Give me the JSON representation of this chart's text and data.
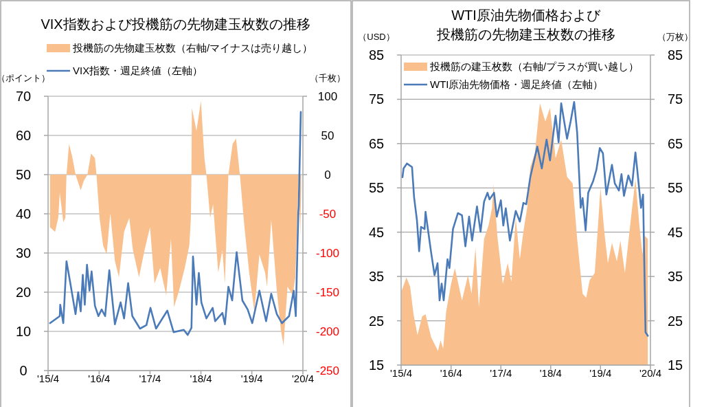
{
  "chart_data": [
    {
      "type": "line",
      "title": "VIX指数および投機筋の先物建玉枚数の推移",
      "ylabel": "（ポイント）",
      "y2label": "（千枚）",
      "legend": "top",
      "grid": "y",
      "xlim": [
        "2015-04-01",
        "2020-04-01"
      ],
      "xticks": [
        {
          "value": "2015-04-01",
          "label": "'15/4"
        },
        {
          "value": "2016-04-01",
          "label": "'16/4"
        },
        {
          "value": "2017-04-01",
          "label": "'17/4"
        },
        {
          "value": "2018-04-01",
          "label": "'18/4"
        },
        {
          "value": "2019-04-01",
          "label": "'19/4"
        },
        {
          "value": "2020-04-01",
          "label": "'20/4"
        }
      ],
      "ylim": [
        0,
        70
      ],
      "yticks": [
        0,
        10,
        20,
        30,
        40,
        50,
        60,
        70
      ],
      "y2lim": [
        -250,
        100
      ],
      "y2ticks": [
        -250,
        -200,
        -150,
        -100,
        -50,
        0,
        50,
        100
      ],
      "series": [
        {
          "name": "投機筋の先物建玉枚数（右軸/マイナスは売り越し）",
          "type": "area",
          "axis": "y2",
          "color": "#f9c08e",
          "x": [
            "2015-04-15",
            "2015-05-21",
            "2015-06-13",
            "2015-06-24",
            "2015-07-19",
            "2015-08-03",
            "2015-08-11",
            "2015-08-29",
            "2015-09-20",
            "2015-10-15",
            "2015-11-21",
            "2015-12-13",
            "2016-01-08",
            "2016-02-03",
            "2016-03-02",
            "2016-03-13",
            "2016-04-04",
            "2016-04-29",
            "2016-05-25",
            "2016-06-20",
            "2016-07-23",
            "2016-08-21",
            "2016-09-27",
            "2016-11-03",
            "2016-11-29",
            "2017-01-12",
            "2017-02-21",
            "2017-04-01",
            "2017-05-03",
            "2017-06-13",
            "2017-07-26",
            "2017-08-29",
            "2017-09-20",
            "2017-10-26",
            "2017-12-06",
            "2018-01-08",
            "2018-01-19",
            "2018-01-23",
            "2018-01-26",
            "2018-02-28",
            "2018-04-01",
            "2018-04-26",
            "2018-05-10",
            "2018-06-06",
            "2018-06-27",
            "2018-08-03",
            "2018-09-02",
            "2018-09-20",
            "2018-10-15",
            "2018-11-14",
            "2018-12-09",
            "2019-01-05",
            "2019-02-07",
            "2019-03-13",
            "2019-04-19",
            "2019-05-25",
            "2019-07-05",
            "2019-07-19",
            "2019-08-18",
            "2019-09-27",
            "2019-10-26",
            "2019-11-14",
            "2019-12-13",
            "2020-01-19",
            "2020-02-07",
            "2020-03-02",
            "2020-03-13",
            "2020-03-20"
          ],
          "values": [
            -67,
            -73,
            -55,
            -23,
            -61,
            -55,
            0,
            39,
            24,
            0,
            -20,
            -8,
            0,
            27,
            21,
            0,
            -55,
            -90,
            -102,
            -49,
            -110,
            -131,
            -73,
            -55,
            -96,
            -131,
            -96,
            -67,
            -139,
            -119,
            -154,
            -82,
            -169,
            -148,
            -119,
            -90,
            -55,
            0,
            85,
            56,
            94,
            21,
            0,
            -55,
            -38,
            -125,
            -96,
            -139,
            0,
            39,
            46,
            0,
            -67,
            -125,
            -175,
            -102,
            -125,
            -143,
            -58,
            -148,
            -198,
            -218,
            -143,
            -154,
            -131,
            0,
            -78,
            -17
          ]
        },
        {
          "name": "VIX指数・週足終値（左軸）",
          "type": "line",
          "axis": "y",
          "color": "#4a7ab8",
          "x": [
            "2015-04-15",
            "2015-06-24",
            "2015-06-27",
            "2015-07-19",
            "2015-08-11",
            "2015-09-06",
            "2015-10-15",
            "2015-11-03",
            "2015-11-21",
            "2015-12-06",
            "2015-12-20",
            "2016-01-05",
            "2016-01-23",
            "2016-02-07",
            "2016-03-02",
            "2016-03-27",
            "2016-04-19",
            "2016-05-14",
            "2016-06-13",
            "2016-07-23",
            "2016-09-02",
            "2016-09-27",
            "2016-10-26",
            "2016-11-25",
            "2017-01-19",
            "2017-03-06",
            "2017-04-04",
            "2017-05-14",
            "2017-08-03",
            "2017-09-17",
            "2017-11-29",
            "2017-12-27",
            "2018-01-23",
            "2018-02-03",
            "2018-02-28",
            "2018-03-17",
            "2018-04-04",
            "2018-05-10",
            "2018-06-24",
            "2018-07-12",
            "2018-09-02",
            "2018-09-20",
            "2018-10-15",
            "2018-11-11",
            "2018-12-13",
            "2019-01-23",
            "2019-03-02",
            "2019-04-04",
            "2019-05-25",
            "2019-07-12",
            "2019-08-18",
            "2019-09-27",
            "2019-11-03",
            "2019-12-24",
            "2020-01-26",
            "2020-02-10",
            "2020-02-28",
            "2020-03-02",
            "2020-03-17"
          ],
          "values": [
            12.1,
            13.9,
            16.8,
            12.1,
            27.9,
            22.6,
            14.4,
            20,
            15.1,
            24.4,
            16.8,
            27,
            20.4,
            25.3,
            16.5,
            13.9,
            15.6,
            13.9,
            25.6,
            11.8,
            17.4,
            13.3,
            22.3,
            13.9,
            10.7,
            11.6,
            16,
            10.7,
            15.3,
            9.8,
            10.4,
            9.1,
            10.9,
            29.1,
            16.8,
            24.9,
            17.4,
            13.3,
            16,
            12.6,
            14.7,
            11.8,
            21.4,
            17.9,
            30.2,
            17.9,
            15.6,
            12.1,
            20.4,
            12.6,
            19.6,
            14.4,
            12.1,
            13.9,
            20.4,
            13.9,
            40.2,
            41.9,
            66
          ]
        }
      ]
    },
    {
      "type": "line",
      "title": "WTI原油先物価格および投機筋の先物建玉枚数の推移",
      "ylabel": "（USD）",
      "y2label": "（万枚）",
      "legend": "top left",
      "grid": "y",
      "xlim": [
        "2015-04-01",
        "2020-04-01"
      ],
      "xticks": [
        {
          "value": "2015-04-01",
          "label": "'15/4"
        },
        {
          "value": "2016-04-01",
          "label": "'16/4"
        },
        {
          "value": "2017-04-01",
          "label": "'17/4"
        },
        {
          "value": "2018-04-01",
          "label": "'18/4"
        },
        {
          "value": "2019-04-01",
          "label": "'19/4"
        },
        {
          "value": "2020-04-01",
          "label": "'20/4"
        }
      ],
      "ylim": [
        15,
        85
      ],
      "yticks": [
        15,
        25,
        35,
        45,
        55,
        65,
        75,
        85
      ],
      "y2lim": [
        15,
        85
      ],
      "y2ticks": [
        15,
        25,
        35,
        45,
        55,
        65,
        75,
        85
      ],
      "series": [
        {
          "name": "投機筋の建玉枚数（右軸/プラスが買い越し）",
          "type": "area",
          "axis": "y2",
          "color": "#f9c08e",
          "x": [
            "2015-04-04",
            "2015-05-10",
            "2015-06-06",
            "2015-07-01",
            "2015-07-30",
            "2015-09-02",
            "2015-09-27",
            "2015-11-07",
            "2015-12-27",
            "2016-01-15",
            "2016-02-03",
            "2016-02-25",
            "2016-04-01",
            "2016-04-29",
            "2016-06-20",
            "2016-08-03",
            "2016-08-29",
            "2016-09-27",
            "2016-10-22",
            "2016-11-29",
            "2017-01-01",
            "2017-01-26",
            "2017-02-07",
            "2017-03-06",
            "2017-04-15",
            "2017-05-21",
            "2017-06-17",
            "2017-07-19",
            "2017-08-18",
            "2017-09-13",
            "2017-10-12",
            "2017-11-03",
            "2017-12-06",
            "2018-01-12",
            "2018-02-21",
            "2018-03-27",
            "2018-05-07",
            "2018-06-17",
            "2018-07-30",
            "2018-09-09",
            "2018-10-12",
            "2018-11-21",
            "2018-12-17",
            "2019-01-12",
            "2019-02-18",
            "2019-03-13",
            "2019-04-01",
            "2019-04-29",
            "2019-05-25",
            "2019-06-24",
            "2019-07-30",
            "2019-08-25",
            "2019-09-27",
            "2019-11-07",
            "2019-12-13",
            "2020-01-12",
            "2020-02-03",
            "2020-02-18",
            "2020-03-13"
          ],
          "values": [
            31.7,
            34.8,
            32.7,
            26.5,
            21.8,
            26,
            26.5,
            21.3,
            18.2,
            20.6,
            18.7,
            27.1,
            33.3,
            36.9,
            29.6,
            35.3,
            31.1,
            41.5,
            28,
            43.5,
            46.6,
            50.4,
            55.8,
            44.2,
            33.3,
            38,
            33.8,
            48.2,
            38.9,
            45.1,
            50.8,
            59.7,
            62.8,
            74.1,
            70,
            73.1,
            61.7,
            65.9,
            57.5,
            56,
            43.5,
            31.1,
            30.2,
            34.2,
            35.8,
            46.2,
            55,
            45.1,
            38,
            42.6,
            38.4,
            43.1,
            35.8,
            47.3,
            57,
            46.2,
            40,
            44.2,
            43.5
          ]
        },
        {
          "name": "WTI原油先物価格・週足終値（左軸）",
          "type": "line",
          "axis": "y",
          "color": "#4a7ab8",
          "x": [
            "2015-04-11",
            "2015-04-19",
            "2015-05-14",
            "2015-06-20",
            "2015-07-05",
            "2015-07-26",
            "2015-08-11",
            "2015-08-25",
            "2015-09-20",
            "2015-09-27",
            "2015-10-12",
            "2015-11-07",
            "2015-12-02",
            "2015-12-24",
            "2016-01-08",
            "2016-01-23",
            "2016-02-07",
            "2016-03-06",
            "2016-03-20",
            "2016-04-15",
            "2016-05-21",
            "2016-06-20",
            "2016-07-15",
            "2016-08-11",
            "2016-09-02",
            "2016-10-08",
            "2016-11-03",
            "2016-11-29",
            "2016-12-24",
            "2017-01-08",
            "2017-02-10",
            "2017-03-02",
            "2017-04-01",
            "2017-04-19",
            "2017-05-07",
            "2017-06-06",
            "2017-07-19",
            "2017-08-18",
            "2017-09-13",
            "2017-10-04",
            "2017-11-03",
            "2017-12-24",
            "2018-01-26",
            "2018-03-02",
            "2018-03-27",
            "2018-05-07",
            "2018-05-29",
            "2018-06-17",
            "2018-07-30",
            "2018-08-25",
            "2018-09-20",
            "2018-10-12",
            "2018-11-07",
            "2018-11-21",
            "2018-12-13",
            "2019-01-01",
            "2019-02-07",
            "2019-03-02",
            "2019-03-27",
            "2019-04-19",
            "2019-05-14",
            "2019-06-24",
            "2019-07-15",
            "2019-08-14",
            "2019-09-02",
            "2019-09-20",
            "2019-10-22",
            "2019-11-18",
            "2019-12-13",
            "2019-12-27",
            "2020-01-23",
            "2020-02-07",
            "2020-02-25",
            "2020-03-13"
          ],
          "values": [
            57.4,
            59.4,
            60.5,
            59.7,
            52.9,
            47.7,
            40.7,
            46.2,
            45.7,
            49.6,
            46.2,
            40.4,
            35.3,
            38,
            29.6,
            33.4,
            29.6,
            38.9,
            36.9,
            45.7,
            49.3,
            48.8,
            41.8,
            48.5,
            43.1,
            50.8,
            45.1,
            51.9,
            53.9,
            52.4,
            53.9,
            48.5,
            52.2,
            46.5,
            50.4,
            43.1,
            49.8,
            47.4,
            51.6,
            51.3,
            57.5,
            64.3,
            59.4,
            65.9,
            61.2,
            71.3,
            65.3,
            74.1,
            66.1,
            70,
            74.4,
            67.5,
            50.5,
            52.7,
            45.4,
            53.9,
            56.6,
            59.1,
            64,
            62.8,
            53.5,
            60.2,
            56,
            54.4,
            58.1,
            53.2,
            57.8,
            55.5,
            63,
            58.9,
            50.5,
            53.5,
            22.4,
            21.6
          ]
        }
      ]
    }
  ]
}
